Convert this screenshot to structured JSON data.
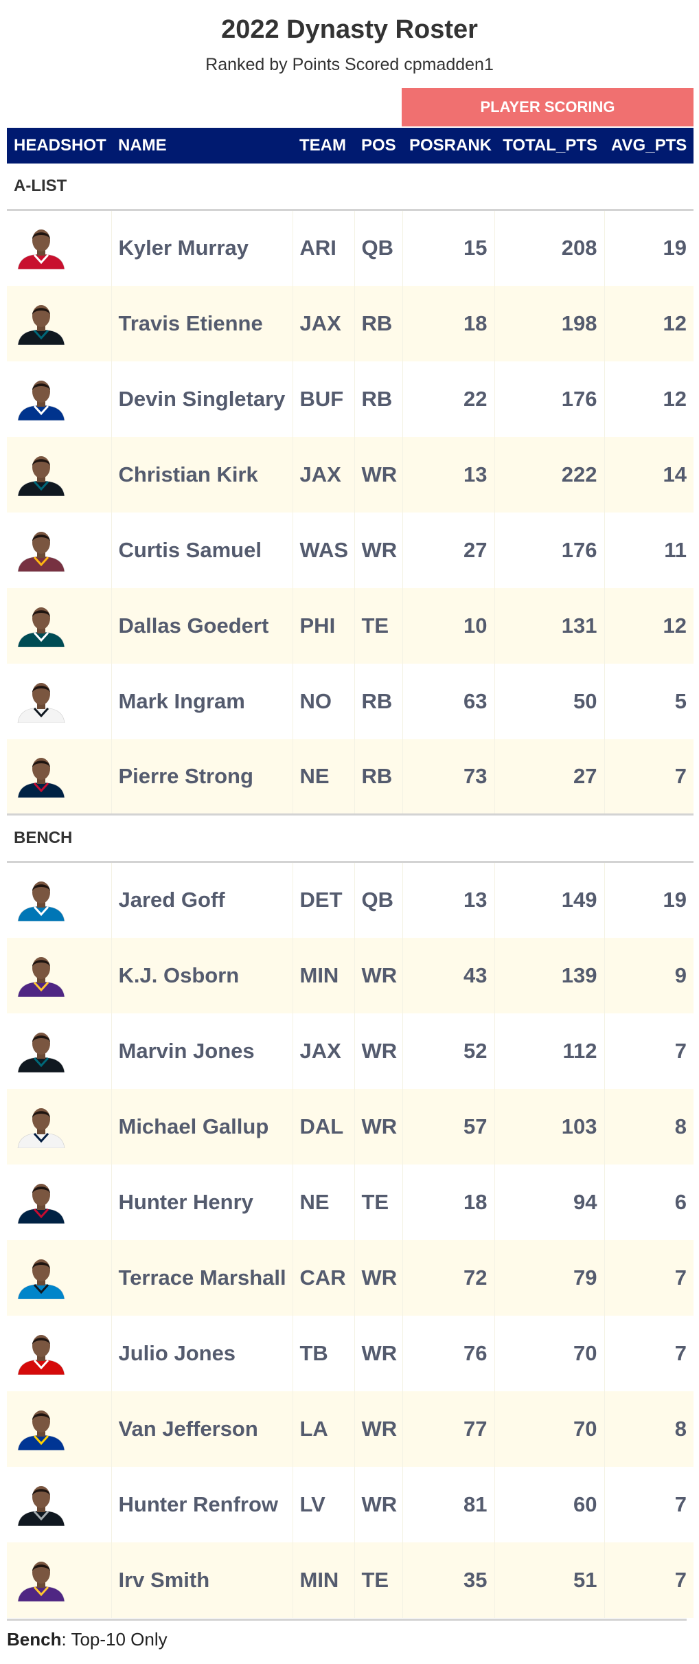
{
  "title": "2022 Dynasty Roster",
  "subtitle": "Ranked by Points Scored cpmadden1",
  "spanner_label": "PLAYER SCORING",
  "columns": {
    "headshot": "HEADSHOT",
    "name": "NAME",
    "team": "TEAM",
    "pos": "POS",
    "posrank": "POSRANK",
    "total_pts": "TOTAL_PTS",
    "avg_pts": "AVG_PTS"
  },
  "groups": [
    {
      "label": "A-LIST",
      "players": [
        {
          "name": "Kyler Murray",
          "team": "ARI",
          "pos": "QB",
          "posrank": 15,
          "total_pts": 208,
          "avg_pts": 19,
          "jersey": "#c8102e",
          "jersey_accent": "#ffffff"
        },
        {
          "name": "Travis Etienne",
          "team": "JAX",
          "pos": "RB",
          "posrank": 18,
          "total_pts": 198,
          "avg_pts": 12,
          "jersey": "#101820",
          "jersey_accent": "#006778"
        },
        {
          "name": "Devin Singletary",
          "team": "BUF",
          "pos": "RB",
          "posrank": 22,
          "total_pts": 176,
          "avg_pts": 12,
          "jersey": "#00338d",
          "jersey_accent": "#ffffff"
        },
        {
          "name": "Christian Kirk",
          "team": "JAX",
          "pos": "WR",
          "posrank": 13,
          "total_pts": 222,
          "avg_pts": 14,
          "jersey": "#101820",
          "jersey_accent": "#006778"
        },
        {
          "name": "Curtis Samuel",
          "team": "WAS",
          "pos": "WR",
          "posrank": 27,
          "total_pts": 176,
          "avg_pts": 11,
          "jersey": "#773141",
          "jersey_accent": "#ffb612"
        },
        {
          "name": "Dallas Goedert",
          "team": "PHI",
          "pos": "TE",
          "posrank": 10,
          "total_pts": 131,
          "avg_pts": 12,
          "jersey": "#004c54",
          "jersey_accent": "#ffffff"
        },
        {
          "name": "Mark Ingram",
          "team": "NO",
          "pos": "RB",
          "posrank": 63,
          "total_pts": 50,
          "avg_pts": 5,
          "jersey": "#f4f4f4",
          "jersey_accent": "#101820"
        },
        {
          "name": "Pierre Strong",
          "team": "NE",
          "pos": "RB",
          "posrank": 73,
          "total_pts": 27,
          "avg_pts": 7,
          "jersey": "#002244",
          "jersey_accent": "#c60c30"
        }
      ]
    },
    {
      "label": "BENCH",
      "players": [
        {
          "name": "Jared Goff",
          "team": "DET",
          "pos": "QB",
          "posrank": 13,
          "total_pts": 149,
          "avg_pts": 19,
          "jersey": "#0076b6",
          "jersey_accent": "#ffffff"
        },
        {
          "name": "K.J. Osborn",
          "team": "MIN",
          "pos": "WR",
          "posrank": 43,
          "total_pts": 139,
          "avg_pts": 9,
          "jersey": "#4f2683",
          "jersey_accent": "#ffc62f"
        },
        {
          "name": "Marvin Jones",
          "team": "JAX",
          "pos": "WR",
          "posrank": 52,
          "total_pts": 112,
          "avg_pts": 7,
          "jersey": "#101820",
          "jersey_accent": "#006778"
        },
        {
          "name": "Michael Gallup",
          "team": "DAL",
          "pos": "WR",
          "posrank": 57,
          "total_pts": 103,
          "avg_pts": 8,
          "jersey": "#f4f4f4",
          "jersey_accent": "#041e42"
        },
        {
          "name": "Hunter Henry",
          "team": "NE",
          "pos": "TE",
          "posrank": 18,
          "total_pts": 94,
          "avg_pts": 6,
          "jersey": "#002244",
          "jersey_accent": "#c60c30"
        },
        {
          "name": "Terrace Marshall",
          "team": "CAR",
          "pos": "WR",
          "posrank": 72,
          "total_pts": 79,
          "avg_pts": 7,
          "jersey": "#0085ca",
          "jersey_accent": "#101820"
        },
        {
          "name": "Julio Jones",
          "team": "TB",
          "pos": "WR",
          "posrank": 76,
          "total_pts": 70,
          "avg_pts": 7,
          "jersey": "#d50a0a",
          "jersey_accent": "#ffffff"
        },
        {
          "name": "Van Jefferson",
          "team": "LA",
          "pos": "WR",
          "posrank": 77,
          "total_pts": 70,
          "avg_pts": 8,
          "jersey": "#003594",
          "jersey_accent": "#ffd100"
        },
        {
          "name": "Hunter Renfrow",
          "team": "LV",
          "pos": "WR",
          "posrank": 81,
          "total_pts": 60,
          "avg_pts": 7,
          "jersey": "#101820",
          "jersey_accent": "#a5acaf"
        },
        {
          "name": "Irv Smith",
          "team": "MIN",
          "pos": "TE",
          "posrank": 35,
          "total_pts": 51,
          "avg_pts": 7,
          "jersey": "#4f2683",
          "jersey_accent": "#ffc62f"
        }
      ]
    }
  ],
  "footnote": {
    "bold": "Bench",
    "text": ": Top-10 Only"
  },
  "colors": {
    "header_bg": "#001a70",
    "spanner_bg": "#f07070",
    "stripe_bg": "#fffbea",
    "text": "#545b6e"
  }
}
